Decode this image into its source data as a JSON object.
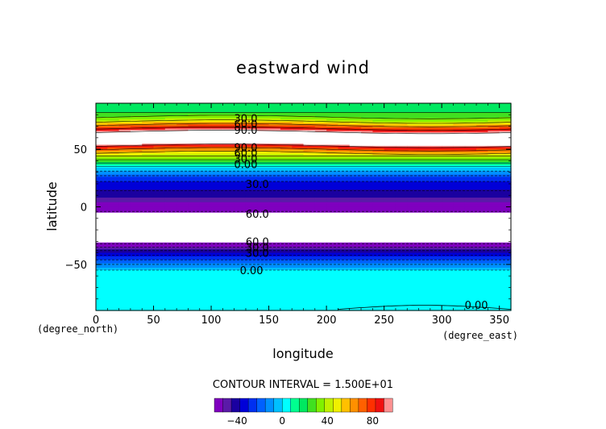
{
  "chart_data": {
    "type": "heatmap",
    "title": "eastward wind",
    "xlabel": "longitude",
    "ylabel": "latitude",
    "x_unit": "(degree_east)",
    "y_unit": "(degree_north)",
    "xlim": [
      0,
      360
    ],
    "ylim": [
      -90,
      90
    ],
    "x_ticks": [
      "0",
      "50",
      "100",
      "150",
      "200",
      "250",
      "300",
      "350"
    ],
    "y_ticks": [
      "50",
      "0",
      "-50"
    ],
    "contour_interval_text": "CONTOUR INTERVAL = 1.500E+01",
    "contour_labels": [
      {
        "text": "30.0",
        "x": 130,
        "y": 77
      },
      {
        "text": "60.0",
        "x": 130,
        "y": 72
      },
      {
        "text": "90.0",
        "x": 130,
        "y": 67
      },
      {
        "text": "90.0",
        "x": 130,
        "y": 52
      },
      {
        "text": "60.0",
        "x": 130,
        "y": 47
      },
      {
        "text": "30.0",
        "x": 130,
        "y": 42
      },
      {
        "text": "0.00",
        "x": 130,
        "y": 37
      },
      {
        "text": "30.0",
        "x": 140,
        "y": 20
      },
      {
        "text": "60.0",
        "x": 140,
        "y": -6
      },
      {
        "text": "60.0",
        "x": 140,
        "y": -30
      },
      {
        "text": "30.0",
        "x": 140,
        "y": -35
      },
      {
        "text": "30.0",
        "x": 140,
        "y": -40
      },
      {
        "text": "0.00",
        "x": 135,
        "y": -55
      },
      {
        "text": "0.00",
        "x": 330,
        "y": -85
      }
    ],
    "colorbar": {
      "ticks": [
        "−40",
        "0",
        "40",
        "80"
      ],
      "tick_values": [
        -40,
        0,
        40,
        80
      ],
      "levels": [
        -60,
        -52.5,
        -45,
        -37.5,
        -30,
        -22.5,
        -15,
        -7.5,
        0,
        7.5,
        15,
        22.5,
        30,
        37.5,
        45,
        52.5,
        60,
        67.5,
        75,
        82.5,
        90,
        97.5
      ],
      "colors": [
        "#7f00bf",
        "#5a1aa8",
        "#1a00a0",
        "#0000d8",
        "#0030f0",
        "#0060ff",
        "#0090ff",
        "#00c0ff",
        "#00ffff",
        "#00ff90",
        "#00e860",
        "#40e020",
        "#80f000",
        "#c0f000",
        "#f0f000",
        "#ffc000",
        "#ff9000",
        "#ff6000",
        "#ff3000",
        "#f01010",
        "#ff9090"
      ]
    },
    "latitude_profile": [
      {
        "lat": 90,
        "value": 22
      },
      {
        "lat": 84,
        "value": 20
      },
      {
        "lat": 80,
        "value": 26
      },
      {
        "lat": 76,
        "value": 35
      },
      {
        "lat": 73,
        "value": 52
      },
      {
        "lat": 70,
        "value": 70
      },
      {
        "lat": 67,
        "value": 88
      },
      {
        "lat": 64,
        "value": 100
      },
      {
        "lat": 55,
        "value": 100
      },
      {
        "lat": 52,
        "value": 85
      },
      {
        "lat": 50,
        "value": 70
      },
      {
        "lat": 47,
        "value": 55
      },
      {
        "lat": 44,
        "value": 40
      },
      {
        "lat": 40,
        "value": 25
      },
      {
        "lat": 37,
        "value": 12
      },
      {
        "lat": 34,
        "value": 0
      },
      {
        "lat": 30,
        "value": -10
      },
      {
        "lat": 26,
        "value": -22
      },
      {
        "lat": 22,
        "value": -30
      },
      {
        "lat": 15,
        "value": -38
      },
      {
        "lat": 8,
        "value": -45
      },
      {
        "lat": 3,
        "value": -55
      },
      {
        "lat": -4,
        "value": -62
      },
      {
        "lat": -5,
        "value": -100
      },
      {
        "lat": -31,
        "value": -100
      },
      {
        "lat": -33,
        "value": -58
      },
      {
        "lat": -37,
        "value": -45
      },
      {
        "lat": -41,
        "value": -35
      },
      {
        "lat": -45,
        "value": -25
      },
      {
        "lat": -49,
        "value": -15
      },
      {
        "lat": -53,
        "value": -8
      },
      {
        "lat": -56,
        "value": 2
      },
      {
        "lat": -90,
        "value": 5
      }
    ]
  }
}
